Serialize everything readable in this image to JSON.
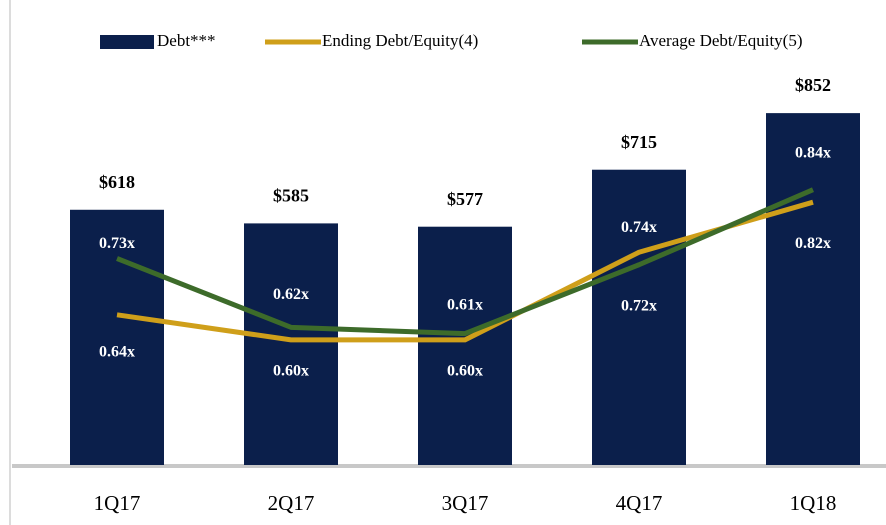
{
  "chart_data": {
    "type": "bar",
    "categories": [
      "1Q17",
      "2Q17",
      "3Q17",
      "4Q17",
      "1Q18"
    ],
    "ylim": [
      0,
      1000
    ],
    "y2lim": [
      0.4,
      1.06
    ],
    "series": [
      {
        "name": "Debt***",
        "type": "bar",
        "color": "#0b1f4b",
        "values": [
          618,
          585,
          577,
          715,
          852
        ],
        "value_labels": [
          "$618",
          "$585",
          "$577",
          "$715",
          "$852"
        ]
      },
      {
        "name": "Ending Debt/Equity(4)",
        "type": "line",
        "axis": "y2",
        "color": "#cf9f1a",
        "values": [
          0.64,
          0.6,
          0.6,
          0.74,
          0.82
        ],
        "value_labels": [
          "0.64x",
          "0.60x",
          "0.60x",
          "0.74x",
          "0.82x"
        ]
      },
      {
        "name": "Average Debt/Equity(5)",
        "type": "line",
        "axis": "y2",
        "color": "#3d6b2a",
        "values": [
          0.73,
          0.62,
          0.61,
          0.72,
          0.84
        ],
        "value_labels": [
          "0.73x",
          "0.62x",
          "0.61x",
          "0.72x",
          "0.84x"
        ]
      }
    ]
  }
}
